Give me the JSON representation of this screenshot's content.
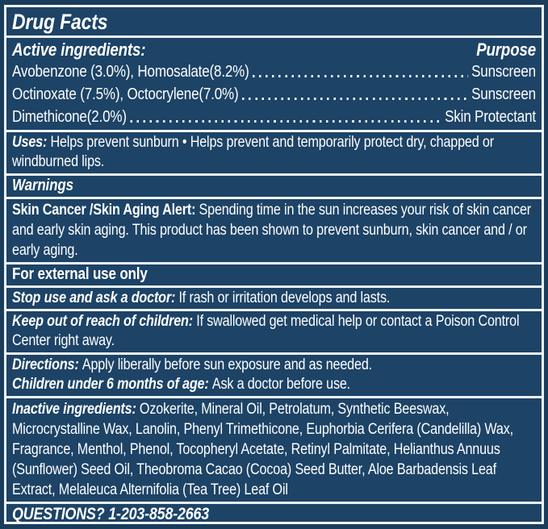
{
  "label": {
    "title": "Drug Facts",
    "active": {
      "heading": "Active ingredients:",
      "purpose_heading": "Purpose",
      "ingredients": [
        {
          "name": "Avobenzone (3.0%), Homosalate(8.2%)",
          "purpose": "Sunscreen"
        },
        {
          "name": "Octinoxate (7.5%), Octocrylene(7.0%)",
          "purpose": "Sunscreen"
        },
        {
          "name": "Dimethicone(2.0%)",
          "purpose": "Skin Protectant"
        }
      ]
    },
    "uses": {
      "heading": "Uses:",
      "text": "Helps prevent sunburn • Helps prevent and temporarily protect dry, chapped or windburned lips."
    },
    "warnings": {
      "heading": "Warnings"
    },
    "skin_alert": {
      "heading": "Skin Cancer /Skin Aging Alert:",
      "text": "Spending time in the sun increases your risk of skin cancer and early skin aging. This product has been shown to prevent sunburn, skin cancer and / or early aging."
    },
    "external_use": {
      "heading": "For external use only"
    },
    "stop_use": {
      "heading": "Stop use and ask a doctor:",
      "text": "If rash or irritation develops and lasts."
    },
    "keep_out": {
      "heading": "Keep out of reach of children:",
      "text": "If swallowed get medical help or contact a Poison Control Center right away."
    },
    "directions": {
      "heading": "Directions:",
      "text": "Apply liberally before sun exposure and as needed."
    },
    "children": {
      "heading": "Children under 6 months of age:",
      "text": "Ask a doctor before use."
    },
    "inactive": {
      "heading": "Inactive ingredients:",
      "text": "Ozokerite, Mineral Oil, Petrolatum, Synthetic Beeswax, Microcrystalline Wax, Lanolin, Phenyl Trimethicone, Euphorbia Cerifera (Candelilla) Wax, Fragrance, Menthol, Phenol, Tocopheryl Acetate, Retinyl Palmitate, Helianthus Annuus (Sunflower) Seed Oil, Theobroma Cacao (Cocoa) Seed Butter, Aloe Barbadensis Leaf Extract, Melaleuca Alternifolia (Tea Tree) Leaf Oil"
    },
    "questions": {
      "text": "QUESTIONS? 1-203-858-2663"
    }
  },
  "colors": {
    "panel_background": "#1d4366",
    "outer_background": "#1b3d5c",
    "rule_and_text": "#eef3f7"
  }
}
